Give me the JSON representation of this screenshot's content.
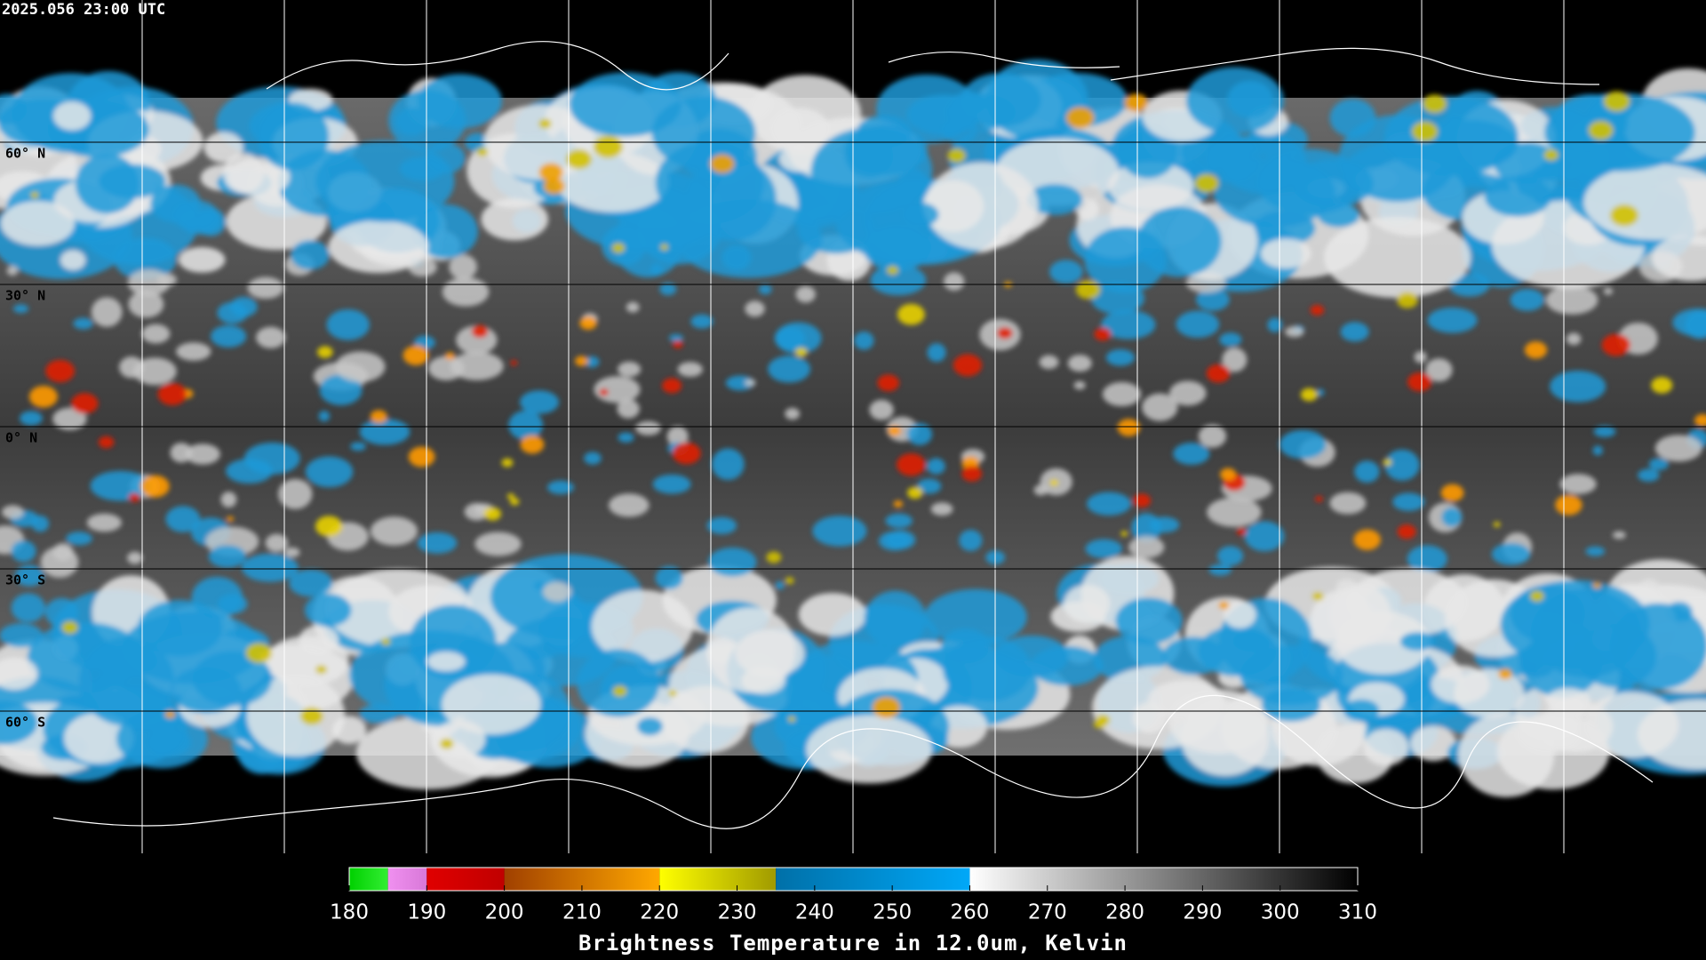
{
  "map": {
    "timestamp": "2025.056 23:00 UTC",
    "lat_labels": [
      {
        "value": 60,
        "label": "60° N"
      },
      {
        "value": 30,
        "label": "30° N"
      },
      {
        "value": 0,
        "label": "0° N"
      },
      {
        "value": -30,
        "label": "30° S"
      },
      {
        "value": -60,
        "label": "60° S"
      }
    ]
  },
  "colorbar": {
    "title": "Brightness Temperature in 12.0um, Kelvin",
    "range": [
      180,
      310
    ],
    "ticks": [
      180,
      190,
      200,
      210,
      220,
      230,
      240,
      250,
      260,
      270,
      280,
      290,
      300,
      310
    ],
    "segments": [
      {
        "from": 180,
        "to": 185,
        "colors": [
          "#00d000",
          "#33ee33"
        ]
      },
      {
        "from": 185,
        "to": 190,
        "colors": [
          "#f090f0",
          "#d878d8"
        ]
      },
      {
        "from": 190,
        "to": 200,
        "colors": [
          "#e00000",
          "#c00000"
        ]
      },
      {
        "from": 200,
        "to": 220,
        "colors": [
          "#a04000",
          "#ffa800"
        ]
      },
      {
        "from": 220,
        "to": 235,
        "colors": [
          "#ffff00",
          "#a09a00"
        ]
      },
      {
        "from": 235,
        "to": 260,
        "colors": [
          "#0070a8",
          "#00a8f8"
        ]
      },
      {
        "from": 260,
        "to": 310,
        "colors": [
          "#ffffff",
          "#000000"
        ]
      }
    ]
  }
}
